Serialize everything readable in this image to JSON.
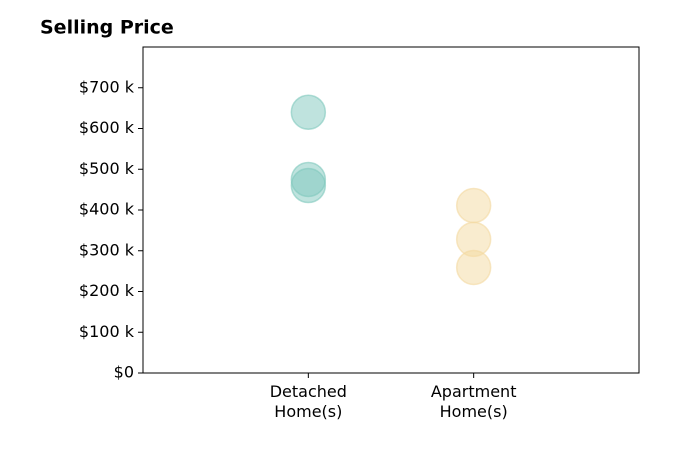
{
  "chart_data": {
    "type": "scatter",
    "title": "Selling Price",
    "categories": [
      "Detached\nHome(s)",
      "Apartment\nHome(s)"
    ],
    "values": [
      [
        640000,
        475000,
        460000
      ],
      [
        411000,
        328000,
        259000
      ]
    ],
    "colors": [
      "#7fc8bd",
      "#f3d9a0"
    ],
    "ylim": [
      0,
      800000
    ],
    "yticks": [
      {
        "value": 0,
        "label": "$0"
      },
      {
        "value": 100000,
        "label": "$100 k"
      },
      {
        "value": 200000,
        "label": "$200 k"
      },
      {
        "value": 300000,
        "label": "$300 k"
      },
      {
        "value": 400000,
        "label": "$400 k"
      },
      {
        "value": 500000,
        "label": "$500 k"
      },
      {
        "value": 600000,
        "label": "$600 k"
      },
      {
        "value": 700000,
        "label": "$700 k"
      }
    ],
    "grid": false
  }
}
